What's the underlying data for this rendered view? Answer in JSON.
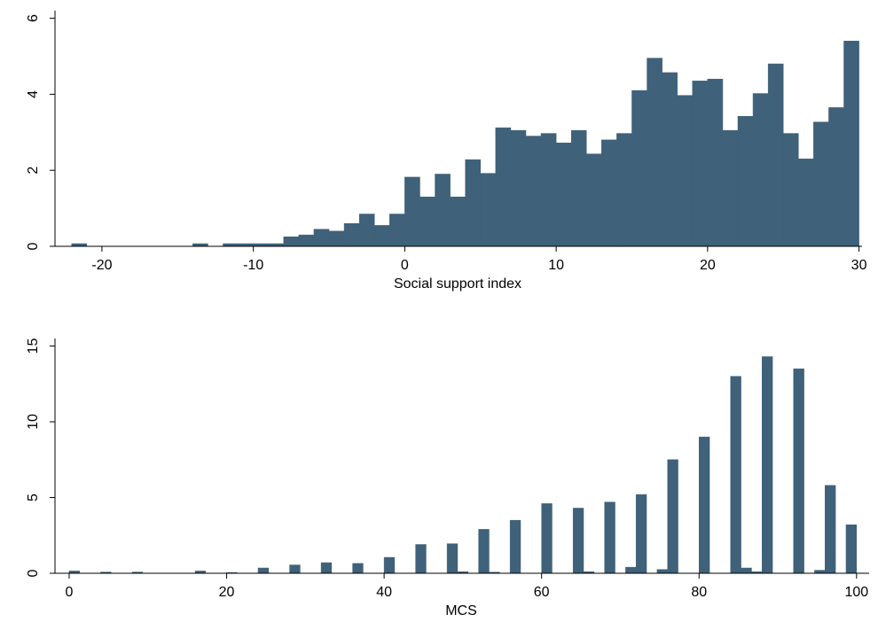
{
  "chart_data": [
    {
      "type": "histogram",
      "x_label": "Social support index",
      "color": "#3f6179",
      "bins": [
        -22,
        -21,
        -20,
        -19,
        -18,
        -17,
        -16,
        -15,
        -14,
        -13,
        -12,
        -11,
        -10,
        -9,
        -8,
        -7,
        -6,
        -5,
        -4,
        -3,
        -2,
        -1,
        0,
        1,
        2,
        3,
        4,
        5,
        6,
        7,
        8,
        9,
        10,
        11,
        12,
        13,
        14,
        15,
        16,
        17,
        18,
        19,
        20,
        21,
        22,
        23,
        24,
        25,
        26,
        27,
        28,
        29,
        30
      ],
      "values": [
        0.07,
        0,
        0,
        0,
        0,
        0,
        0,
        0,
        0.07,
        0,
        0.07,
        0.07,
        0.07,
        0.07,
        0.25,
        0.3,
        0.45,
        0.4,
        0.6,
        0.85,
        0.55,
        0.85,
        1.82,
        1.3,
        1.9,
        1.3,
        2.28,
        1.92,
        3.12,
        3.05,
        2.9,
        2.97,
        2.72,
        3.05,
        2.43,
        2.8,
        2.97,
        4.1,
        4.95,
        4.57,
        3.97,
        4.35,
        4.4,
        3.05,
        3.42,
        4.02,
        4.8,
        2.97,
        2.3,
        3.27,
        3.65,
        5.4
      ],
      "xlim": [
        -23.1,
        30.2
      ],
      "xticks": [
        -20,
        -10,
        0,
        10,
        20,
        30
      ],
      "ylim": [
        0,
        6.2
      ],
      "yticks": [
        0,
        2,
        4,
        6
      ]
    },
    {
      "type": "histogram",
      "x_label": "MCS",
      "color": "#3f6179",
      "bins": [
        0,
        1.33,
        2.67,
        4,
        5.33,
        6.67,
        8,
        9.33,
        10.67,
        12,
        13.33,
        14.67,
        16,
        17.33,
        18.67,
        20,
        21.33,
        22.67,
        24,
        25.33,
        26.67,
        28,
        29.33,
        30.67,
        32,
        33.33,
        34.67,
        36,
        37.33,
        38.67,
        40,
        41.33,
        42.67,
        44,
        45.33,
        46.67,
        48,
        49.33,
        50.67,
        52,
        53.33,
        54.67,
        56,
        57.33,
        58.67,
        60,
        61.33,
        62.67,
        64,
        65.33,
        66.67,
        68,
        69.33,
        70.67,
        72,
        73.33,
        74.67,
        76,
        77.33,
        78.67,
        80,
        81.33,
        82.67,
        84,
        85.33,
        86.67,
        88,
        89.33,
        90.67,
        92,
        93.33,
        94.67,
        96,
        97.33,
        98.67,
        100
      ],
      "values": [
        0.15,
        0,
        0,
        0.08,
        0,
        0,
        0.08,
        0,
        0,
        0,
        0,
        0,
        0.15,
        0,
        0,
        0.05,
        0,
        0,
        0.35,
        0,
        0,
        0.55,
        0,
        0,
        0.7,
        0,
        0,
        0.65,
        0,
        0,
        1.05,
        0,
        0,
        1.9,
        0,
        0,
        1.95,
        0.1,
        0,
        2.9,
        0.07,
        0,
        3.5,
        0,
        0,
        4.6,
        0,
        0,
        4.3,
        0.1,
        0,
        4.7,
        0,
        0.4,
        5.2,
        0,
        0.25,
        7.5,
        0,
        0,
        9.0,
        0,
        0,
        13.0,
        0.35,
        0.1,
        14.3,
        0,
        0,
        13.5,
        0,
        0.2,
        5.8,
        0,
        3.2
      ],
      "xlim": [
        -1.8,
        101.6
      ],
      "xticks": [
        0,
        20,
        40,
        60,
        80,
        100
      ],
      "ylim": [
        0,
        15.5
      ],
      "yticks": [
        0,
        5,
        10,
        15
      ]
    }
  ]
}
